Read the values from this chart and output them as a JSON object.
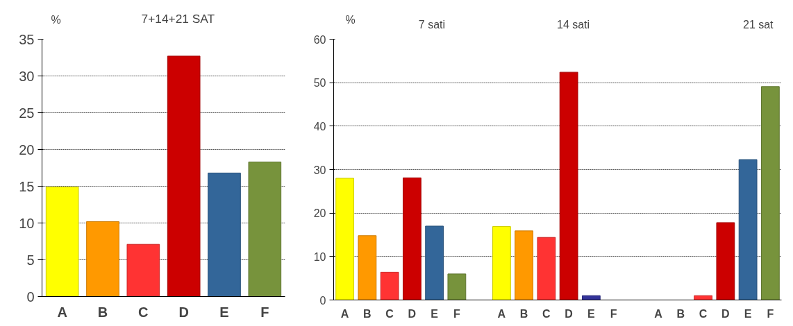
{
  "chart_data": [
    {
      "type": "bar",
      "title": "7+14+21 SAT",
      "ylabel": "%",
      "categories": [
        "A",
        "B",
        "C",
        "D",
        "E",
        "F"
      ],
      "values": [
        14.9,
        10.2,
        7.1,
        32.7,
        16.8,
        18.3
      ],
      "colors": [
        "#ffff00",
        "#ff9900",
        "#ff3333",
        "#cc0000",
        "#336699",
        "#77933c"
      ],
      "ylim": [
        0,
        35
      ],
      "yticks": [
        0,
        5,
        10,
        15,
        20,
        25,
        30,
        35
      ],
      "grid": "y"
    },
    {
      "type": "bar",
      "ylabel": "%",
      "annotations": [
        "7 sati",
        "14 sati",
        "21 sat"
      ],
      "categories": [
        "A",
        "B",
        "C",
        "D",
        "E",
        "F",
        null,
        "A",
        "B",
        "C",
        "D",
        "E",
        "F",
        null,
        "A",
        "B",
        "C",
        "D",
        "E",
        "F"
      ],
      "values": [
        28,
        14.8,
        6.4,
        28.1,
        17,
        6,
        null,
        16.9,
        15.9,
        14.4,
        52.4,
        1,
        0,
        null,
        0,
        0,
        1,
        17.8,
        32.3,
        49.1
      ],
      "colors": [
        "#ffff00",
        "#ff9900",
        "#ff3333",
        "#cc0000",
        "#336699",
        "#77933c",
        null,
        "#ffff00",
        "#ff9900",
        "#ff3333",
        "#cc0000",
        "#333399",
        "#77933c",
        null,
        "#ffff00",
        "#ff9900",
        "#ff3333",
        "#cc0000",
        "#336699",
        "#77933c"
      ],
      "ylim": [
        0,
        60
      ],
      "yticks": [
        0,
        10,
        20,
        30,
        40,
        50,
        60
      ],
      "grid": "y"
    }
  ]
}
